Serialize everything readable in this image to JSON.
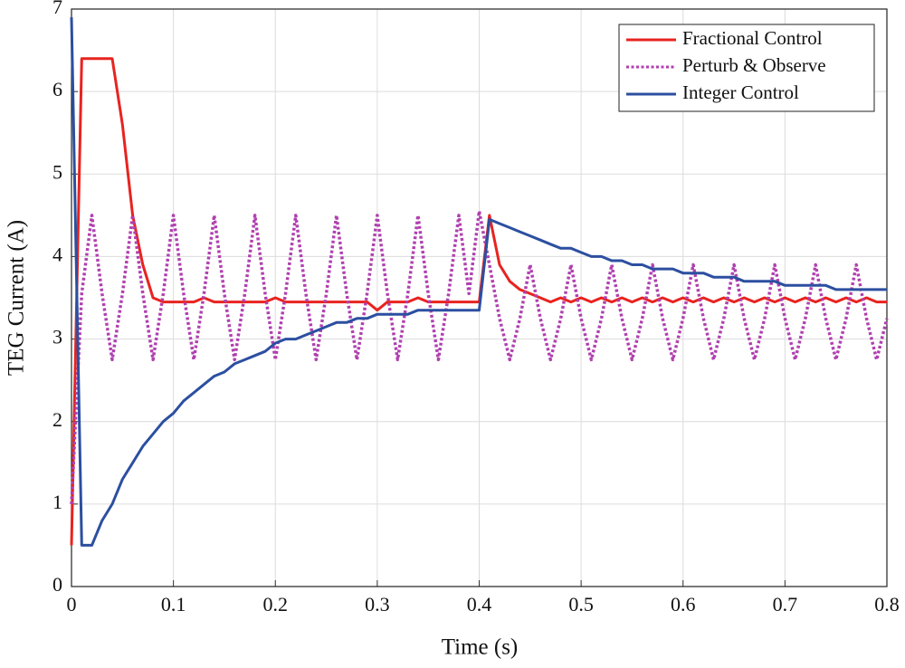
{
  "chart_data": {
    "type": "line",
    "xlabel": "Time (s)",
    "ylabel": "TEG Current (A)",
    "xlim": [
      0,
      0.8
    ],
    "ylim": [
      0,
      7
    ],
    "xticks": [
      0,
      0.1,
      0.2,
      0.3,
      0.4,
      0.5,
      0.6,
      0.7,
      0.8
    ],
    "yticks": [
      0,
      1,
      2,
      3,
      4,
      5,
      6,
      7
    ],
    "grid": true,
    "legend": "upper right",
    "x": [
      0,
      0.01,
      0.02,
      0.03,
      0.04,
      0.05,
      0.06,
      0.07,
      0.08,
      0.09,
      0.1,
      0.11,
      0.12,
      0.13,
      0.14,
      0.15,
      0.16,
      0.17,
      0.18,
      0.19,
      0.2,
      0.21,
      0.22,
      0.23,
      0.24,
      0.25,
      0.26,
      0.27,
      0.28,
      0.29,
      0.3,
      0.31,
      0.32,
      0.33,
      0.34,
      0.35,
      0.36,
      0.37,
      0.38,
      0.39,
      0.4,
      0.41,
      0.42,
      0.43,
      0.44,
      0.45,
      0.46,
      0.47,
      0.48,
      0.49,
      0.5,
      0.51,
      0.52,
      0.53,
      0.54,
      0.55,
      0.56,
      0.57,
      0.58,
      0.59,
      0.6,
      0.61,
      0.62,
      0.63,
      0.64,
      0.65,
      0.66,
      0.67,
      0.68,
      0.69,
      0.7,
      0.71,
      0.72,
      0.73,
      0.74,
      0.75,
      0.76,
      0.77,
      0.78,
      0.79,
      0.8
    ],
    "series": [
      {
        "name": "Fractional Control",
        "color": "#e8231f",
        "dash": "solid",
        "values": [
          0.5,
          6.4,
          6.4,
          6.4,
          6.4,
          5.6,
          4.5,
          3.9,
          3.5,
          3.45,
          3.45,
          3.45,
          3.45,
          3.5,
          3.45,
          3.45,
          3.45,
          3.45,
          3.45,
          3.45,
          3.5,
          3.45,
          3.45,
          3.45,
          3.45,
          3.45,
          3.45,
          3.45,
          3.45,
          3.45,
          3.35,
          3.45,
          3.45,
          3.45,
          3.5,
          3.45,
          3.45,
          3.45,
          3.45,
          3.45,
          3.45,
          4.5,
          3.9,
          3.7,
          3.6,
          3.55,
          3.5,
          3.45,
          3.5,
          3.45,
          3.5,
          3.45,
          3.5,
          3.45,
          3.5,
          3.45,
          3.5,
          3.45,
          3.5,
          3.45,
          3.5,
          3.45,
          3.5,
          3.45,
          3.5,
          3.45,
          3.5,
          3.45,
          3.5,
          3.45,
          3.5,
          3.45,
          3.5,
          3.45,
          3.5,
          3.45,
          3.5,
          3.45,
          3.5,
          3.45,
          3.45
        ]
      },
      {
        "name": "Perturb & Observe",
        "color": "#b040b0",
        "dash": "dotted",
        "values": [
          1.0,
          3.55,
          4.5,
          3.55,
          2.75,
          3.55,
          4.5,
          3.55,
          2.75,
          3.55,
          4.5,
          3.55,
          2.75,
          3.55,
          4.5,
          3.55,
          2.75,
          3.55,
          4.5,
          3.55,
          2.75,
          3.55,
          4.5,
          3.55,
          2.75,
          3.55,
          4.5,
          3.55,
          2.75,
          3.55,
          4.5,
          3.55,
          2.75,
          3.55,
          4.5,
          3.55,
          2.75,
          3.55,
          4.5,
          3.55,
          4.55,
          3.9,
          3.25,
          2.75,
          3.25,
          3.9,
          3.25,
          2.75,
          3.25,
          3.9,
          3.25,
          2.75,
          3.25,
          3.9,
          3.25,
          2.75,
          3.25,
          3.9,
          3.25,
          2.75,
          3.25,
          3.9,
          3.25,
          2.75,
          3.25,
          3.9,
          3.25,
          2.75,
          3.25,
          3.9,
          3.25,
          2.75,
          3.25,
          3.9,
          3.25,
          2.75,
          3.25,
          3.9,
          3.25,
          2.75,
          3.25
        ]
      },
      {
        "name": "Integer Control",
        "color": "#2c4fa0",
        "dash": "solid",
        "values": [
          6.9,
          0.5,
          0.5,
          0.8,
          1.0,
          1.3,
          1.5,
          1.7,
          1.85,
          2.0,
          2.1,
          2.25,
          2.35,
          2.45,
          2.55,
          2.6,
          2.7,
          2.75,
          2.8,
          2.85,
          2.95,
          3.0,
          3.0,
          3.05,
          3.1,
          3.15,
          3.2,
          3.2,
          3.25,
          3.25,
          3.3,
          3.3,
          3.3,
          3.3,
          3.35,
          3.35,
          3.35,
          3.35,
          3.35,
          3.35,
          3.35,
          4.45,
          4.4,
          4.35,
          4.3,
          4.25,
          4.2,
          4.15,
          4.1,
          4.1,
          4.05,
          4.0,
          4.0,
          3.95,
          3.95,
          3.9,
          3.9,
          3.85,
          3.85,
          3.85,
          3.8,
          3.8,
          3.8,
          3.75,
          3.75,
          3.75,
          3.7,
          3.7,
          3.7,
          3.7,
          3.65,
          3.65,
          3.65,
          3.65,
          3.65,
          3.6,
          3.6,
          3.6,
          3.6,
          3.6,
          3.6
        ]
      }
    ]
  }
}
